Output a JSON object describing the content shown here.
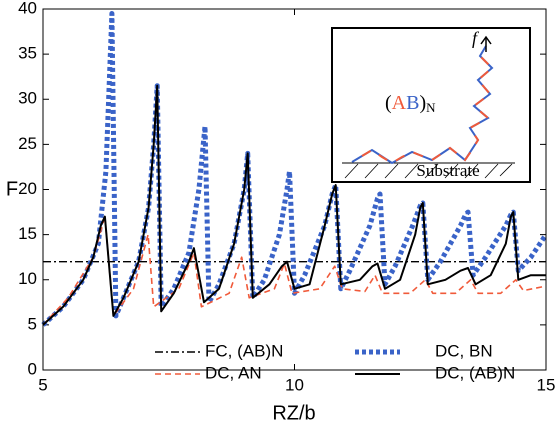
{
  "chart_data": {
    "type": "line",
    "xlabel": "RZ/b",
    "ylabel": "F",
    "xlim": [
      5,
      15
    ],
    "xticks": [
      5,
      10,
      15
    ],
    "ylim": [
      0,
      40
    ],
    "yticks": [
      0,
      5,
      10,
      15,
      20,
      25,
      30,
      35,
      40
    ],
    "grid": false,
    "series": [
      {
        "name": "FC, (AB)N",
        "color": "#000000",
        "style": "dashdot",
        "x": [
          5,
          15
        ],
        "values": [
          12,
          12
        ]
      },
      {
        "name": "DC, BN",
        "color": "#3a63c8",
        "style": "dotted",
        "x": [
          5,
          5.4,
          5.8,
          6.1,
          6.25,
          6.37,
          6.45,
          6.6,
          6.9,
          7.1,
          7.2,
          7.27,
          7.35,
          7.6,
          7.9,
          8.1,
          8.22,
          8.3,
          8.5,
          8.8,
          9.0,
          9.07,
          9.17,
          9.4,
          9.7,
          9.85,
          9.9,
          10.0,
          10.2,
          10.6,
          10.75,
          10.82,
          10.92,
          11.1,
          11.5,
          11.65,
          11.7,
          11.8,
          12.0,
          12.35,
          12.5,
          12.55,
          12.65,
          12.9,
          13.3,
          13.4,
          13.45,
          13.55,
          13.8,
          14.2,
          14.3,
          14.35,
          14.45,
          14.7,
          15
        ],
        "values": [
          5,
          7,
          10,
          14,
          22,
          39.5,
          6,
          8,
          12,
          18,
          25,
          31.5,
          7,
          9,
          13,
          20,
          27,
          7.5,
          9.5,
          14,
          20,
          24,
          8,
          10,
          15,
          20,
          22,
          8.5,
          10.5,
          16,
          19.5,
          20.5,
          9,
          11,
          16,
          19,
          19.5,
          9.5,
          11.5,
          16,
          18.2,
          18.5,
          10,
          12,
          16,
          17.2,
          17.5,
          10.5,
          12.5,
          16,
          17.2,
          17.5,
          11,
          12.5,
          15
        ]
      },
      {
        "name": "DC, AN",
        "color": "#f05a3a",
        "style": "dashed",
        "x": [
          5,
          5.5,
          6.0,
          6.23,
          6.4,
          6.8,
          7.09,
          7.2,
          7.7,
          8.0,
          8.15,
          8.7,
          8.95,
          9.1,
          9.6,
          9.8,
          9.95,
          10.5,
          10.8,
          10.95,
          11.4,
          11.6,
          11.75,
          12.3,
          12.6,
          12.75,
          13.2,
          13.5,
          13.65,
          14.1,
          14.4,
          14.55,
          15
        ],
        "values": [
          5,
          8,
          12.5,
          17,
          6,
          9,
          15,
          7,
          9,
          13,
          7,
          8.5,
          12.5,
          8,
          9,
          11.8,
          8.5,
          9,
          11.5,
          9,
          8.7,
          10.5,
          8.5,
          8.5,
          10,
          8.5,
          8.5,
          10,
          8.5,
          8.5,
          10,
          8.8,
          9.3
        ]
      },
      {
        "name": "DC, (AB)N",
        "color": "#000000",
        "style": "solid",
        "x": [
          5,
          5.4,
          5.8,
          6.0,
          6.15,
          6.23,
          6.4,
          6.6,
          6.9,
          7.1,
          7.2,
          7.27,
          7.35,
          7.6,
          7.9,
          8.0,
          8.2,
          8.5,
          8.8,
          9.0,
          9.07,
          9.17,
          9.5,
          9.75,
          9.85,
          10.0,
          10.3,
          10.6,
          10.75,
          10.82,
          10.92,
          11.3,
          11.55,
          11.65,
          11.8,
          12.1,
          12.4,
          12.5,
          12.55,
          12.65,
          13.0,
          13.3,
          13.45,
          13.6,
          13.9,
          14.2,
          14.3,
          14.35,
          14.45,
          14.7,
          15
        ],
        "values": [
          5,
          7,
          10,
          12.5,
          16,
          17,
          6,
          8,
          12,
          18,
          25,
          31.5,
          6.5,
          8.5,
          12,
          13.5,
          7.5,
          9,
          14,
          20,
          24,
          8,
          9.5,
          11.5,
          12,
          9,
          9.5,
          16,
          19.5,
          20.5,
          9.5,
          10,
          11.5,
          11.8,
          9,
          10,
          15,
          18,
          18.5,
          9.5,
          10,
          11,
          11.3,
          9.5,
          10.5,
          14,
          17,
          17.5,
          10,
          10.5,
          10.5
        ]
      }
    ],
    "inset": {
      "force": "f",
      "label": [
        "(",
        "A",
        "B",
        ")",
        "N"
      ],
      "substrate": "Substrate"
    }
  }
}
